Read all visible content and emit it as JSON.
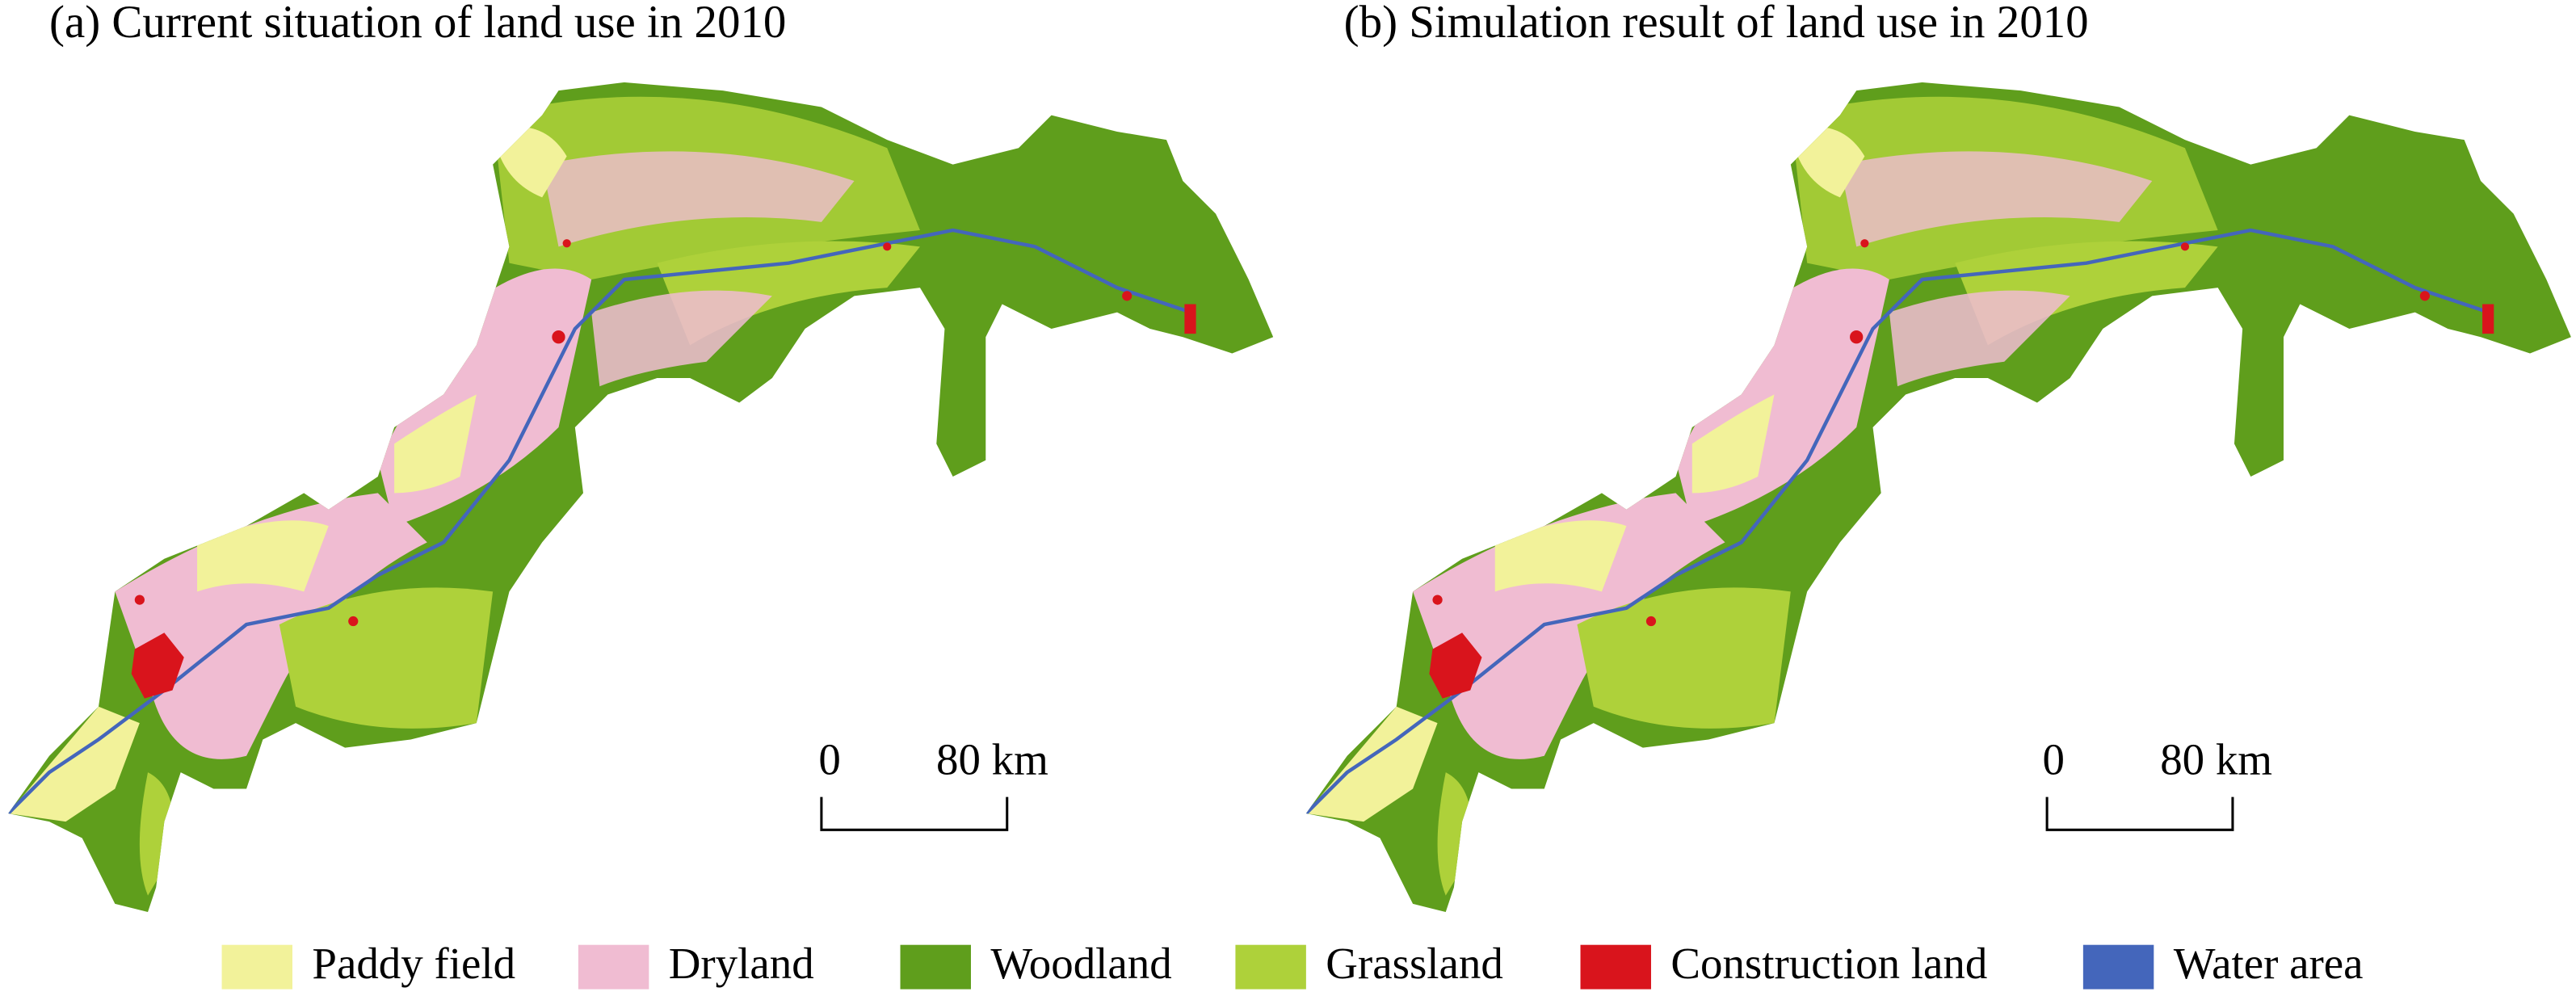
{
  "panels": [
    {
      "title": "(a) Current situation of land use in 2010",
      "scale_bar": {
        "start": "0",
        "end": "80 km"
      }
    },
    {
      "title": "(b) Simulation result of land use in 2010",
      "scale_bar": {
        "start": "0",
        "end": "80 km"
      }
    }
  ],
  "legend": [
    {
      "label": "Paddy field",
      "color": "#f2f29a"
    },
    {
      "label": "Dryland",
      "color": "#f0bcd2"
    },
    {
      "label": "Woodland",
      "color": "#5f9e1c"
    },
    {
      "label": "Grassland",
      "color": "#aed13a"
    },
    {
      "label": "Construction land",
      "color": "#d9141c"
    },
    {
      "label": "Water area",
      "color": "#4466bb"
    }
  ]
}
